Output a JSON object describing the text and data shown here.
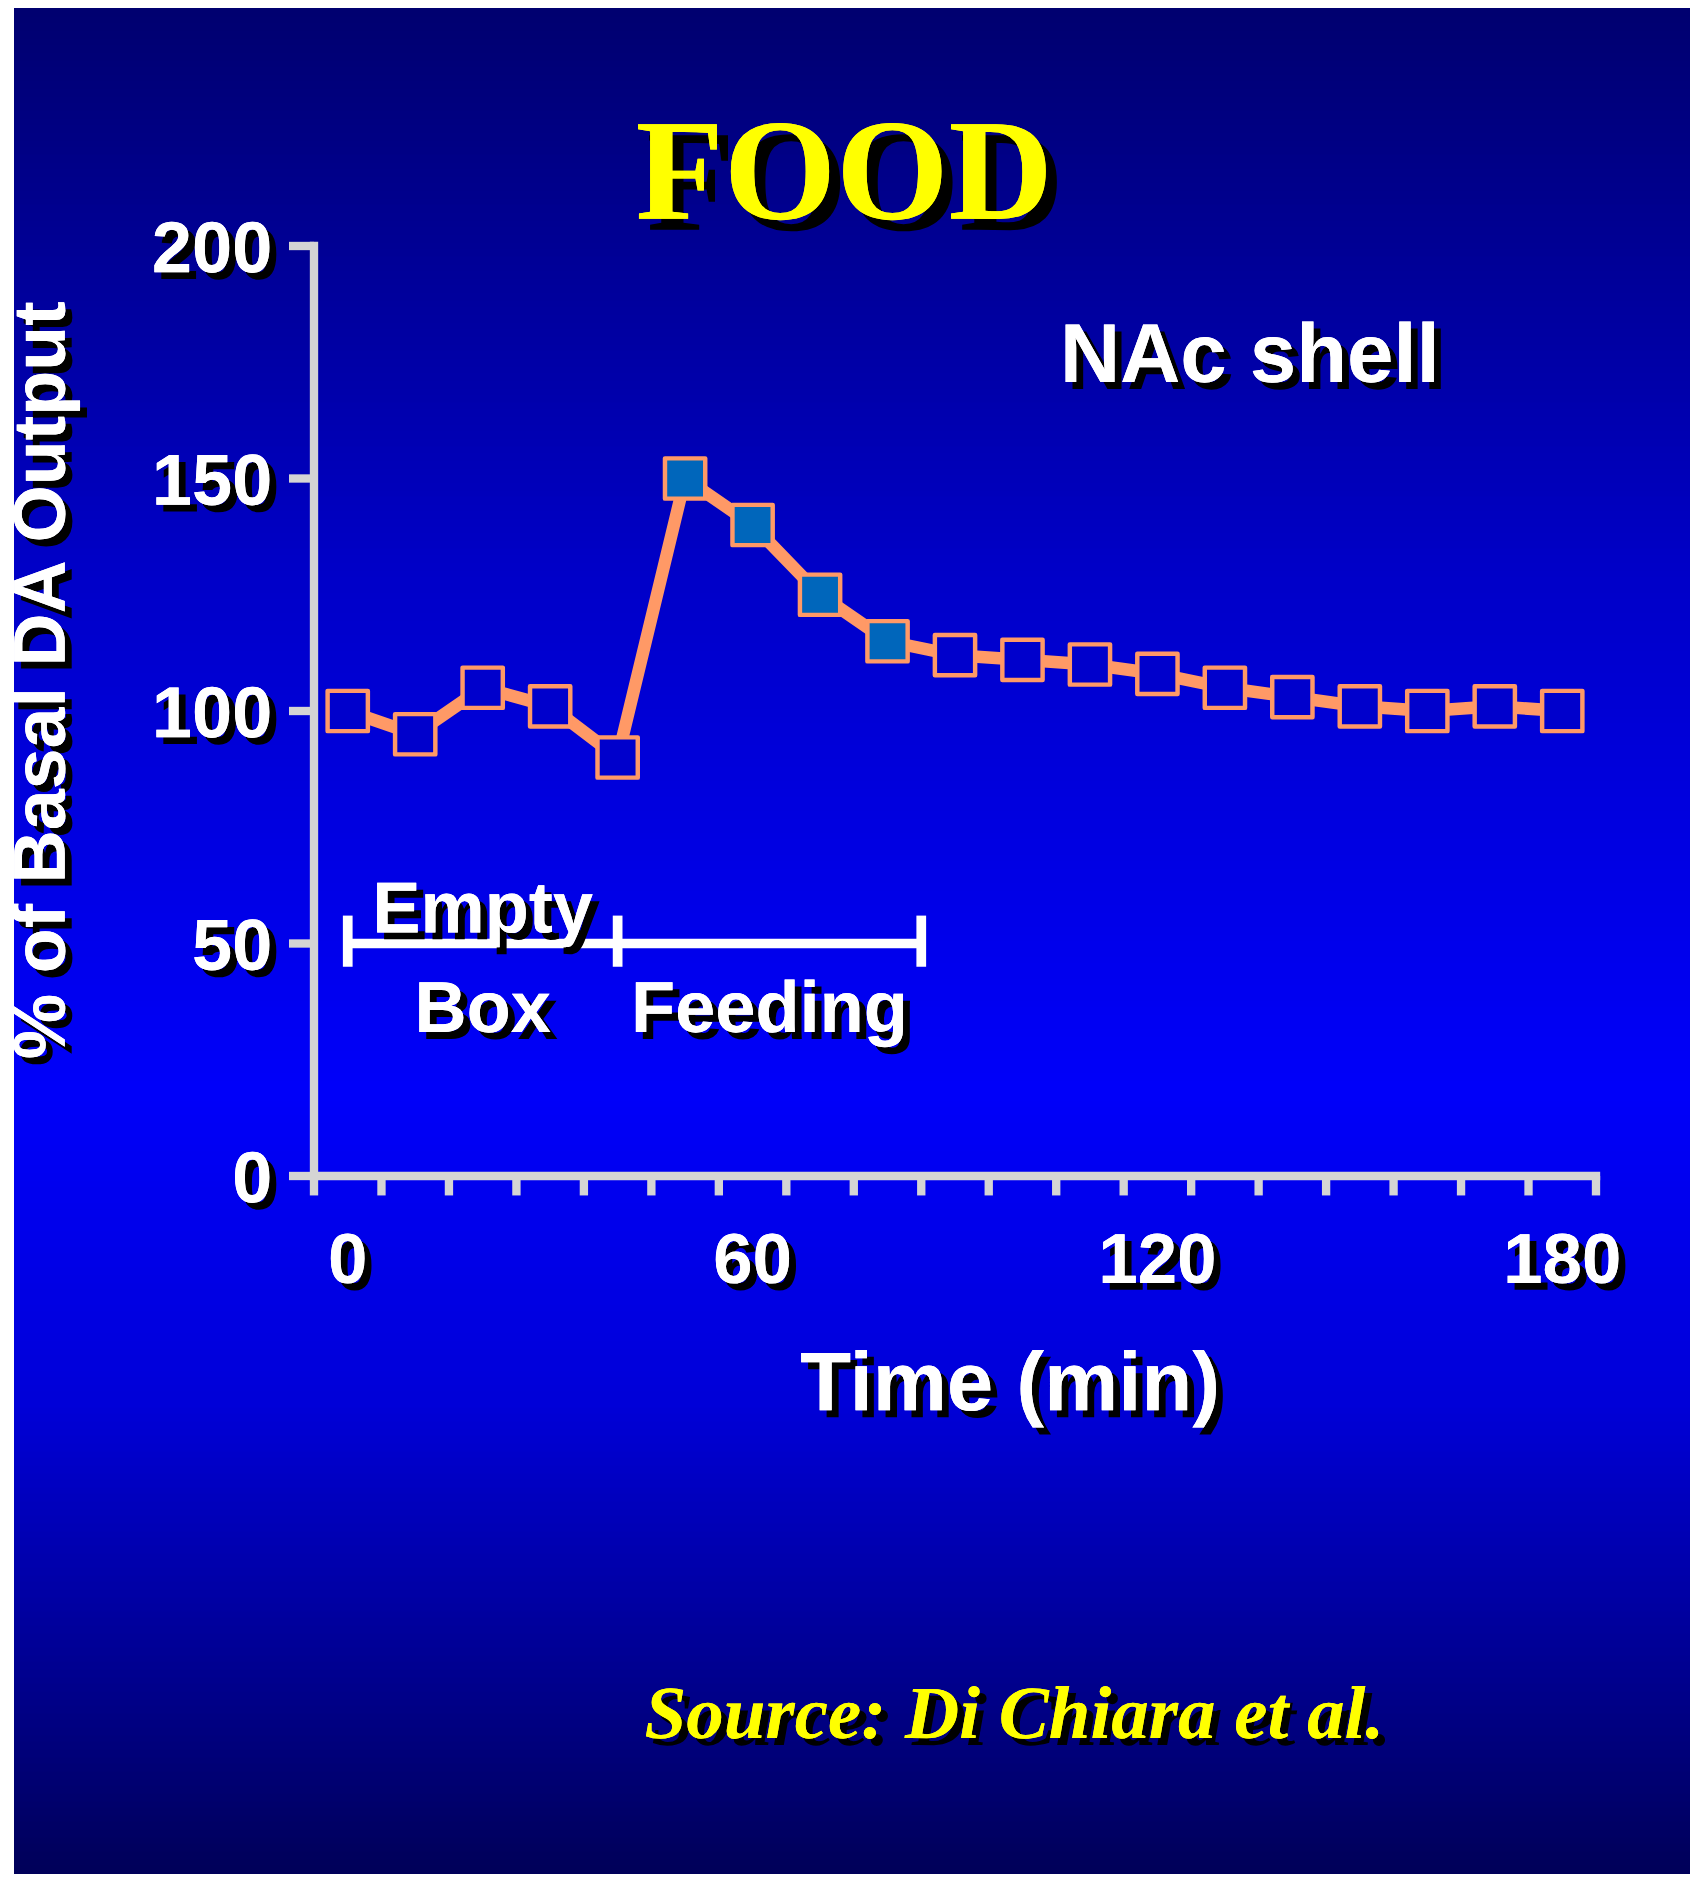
{
  "chart_data": {
    "type": "line",
    "title": "FOOD",
    "xlabel": "Time (min)",
    "ylabel": "% of Basal DA Output",
    "annotations": [
      "NAc shell",
      {
        "text": "Empty\nBox",
        "x": 20,
        "y": 50
      },
      {
        "text": "Feeding",
        "x": 62.5,
        "y": 50
      },
      "Source: Di Chiara et al."
    ],
    "x": [
      0,
      10,
      20,
      30,
      40,
      50,
      60,
      70,
      80,
      90,
      100,
      110,
      120,
      130,
      140,
      150,
      160,
      170,
      180
    ],
    "series": [
      {
        "color": "#ff9966",
        "colors": [
          "#0000cc",
          "#0000cc",
          "#0000cc",
          "#0000cc",
          "#0000cc",
          "#0066bb",
          "#0066bb",
          "#0066bb",
          "#0066bb",
          "#0000cc",
          "#0000cc",
          "#0000cc",
          "#0000cc",
          "#0000cc",
          "#0000cc",
          "#0000cc",
          "#0000cc",
          "#0000cc",
          "#0000cc"
        ],
        "values": [
          100,
          95,
          105,
          101,
          90,
          150,
          140,
          125,
          115,
          112,
          111,
          110,
          108,
          105,
          103,
          101,
          100,
          101,
          100
        ]
      },
      {
        "type": "line",
        "marker": "none",
        "color": "#ffffff",
        "x": [
          0,
          40,
          85
        ],
        "values": [
          50,
          50,
          50
        ],
        "errors": [
          [
            45,
            56
          ],
          [
            45,
            56
          ],
          [
            45,
            56
          ]
        ]
      }
    ],
    "xlim": [
      -5,
      185
    ],
    "ylim": [
      0,
      200
    ],
    "xticks": [
      {
        "value": -5,
        "label": null
      },
      0,
      {
        "value": 5,
        "label": null
      },
      {
        "value": 15,
        "label": null
      },
      {
        "value": 25,
        "label": null
      },
      {
        "value": 35,
        "label": null
      },
      {
        "value": 45,
        "label": null
      },
      {
        "value": 55,
        "label": null
      },
      60,
      {
        "value": 65,
        "label": null
      },
      {
        "value": 75,
        "label": null
      },
      {
        "value": 85,
        "label": null
      },
      {
        "value": 95,
        "label": null
      },
      {
        "value": 105,
        "label": null
      },
      {
        "value": 115,
        "label": null
      },
      120,
      {
        "value": 125,
        "label": null
      },
      {
        "value": 135,
        "label": null
      },
      {
        "value": 145,
        "label": null
      },
      {
        "value": 155,
        "label": null
      },
      {
        "value": 165,
        "label": null
      },
      {
        "value": 175,
        "label": null
      },
      180,
      {
        "value": 185,
        "label": null
      }
    ],
    "yticks": [
      0,
      50,
      100,
      150,
      200
    ],
    "marker": "square",
    "line_style": "solid",
    "grid": false
  }
}
